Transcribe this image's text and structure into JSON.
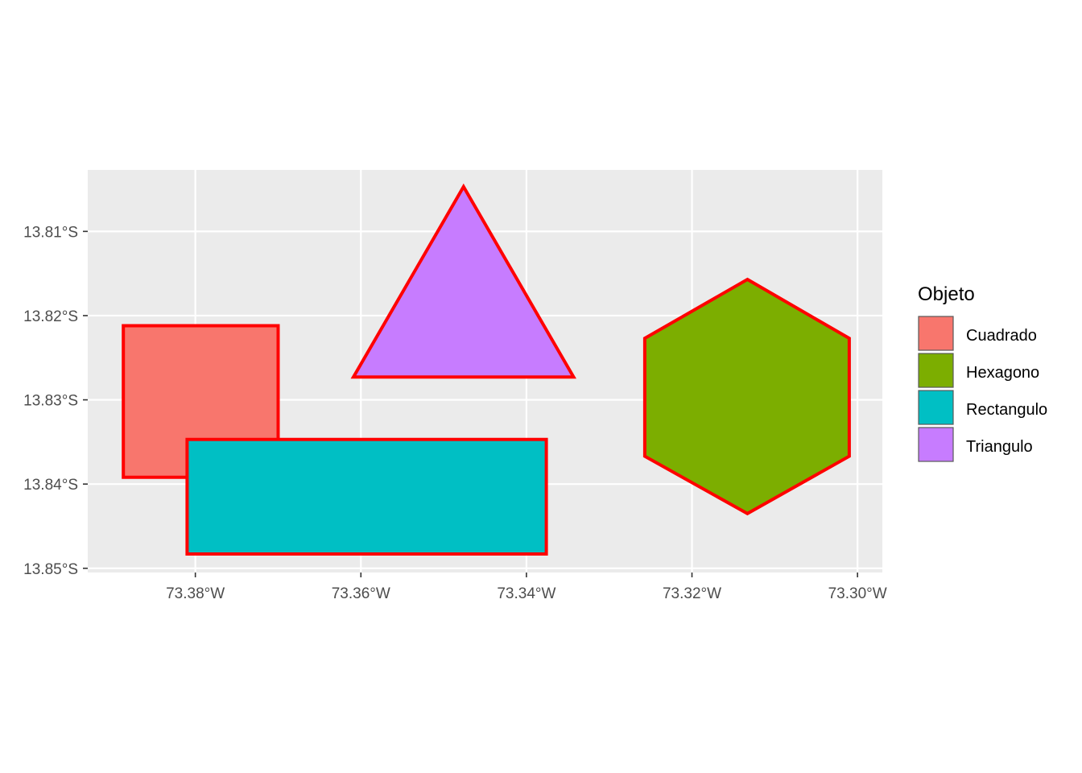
{
  "chart_data": {
    "type": "map",
    "title": "",
    "xlabel": "",
    "ylabel": "",
    "x_axis": {
      "ticks": [
        -73.38,
        -73.36,
        -73.34,
        -73.32,
        -73.3
      ],
      "tick_labels": [
        "73.38°W",
        "73.36°W",
        "73.34°W",
        "73.32°W",
        "73.30°W"
      ],
      "range": [
        -73.393,
        -73.297
      ]
    },
    "y_axis": {
      "ticks": [
        -13.81,
        -13.82,
        -13.83,
        -13.84,
        -13.85
      ],
      "tick_labels": [
        "13.81°S",
        "13.82°S",
        "13.83°S",
        "13.84°S",
        "13.85°S"
      ],
      "range": [
        -13.8505,
        -13.8027
      ]
    },
    "background": "#ebebeb",
    "grid": true,
    "outline_color": "#ff0000",
    "legend": {
      "title": "Objeto",
      "position": "right",
      "entries": [
        {
          "label": "Cuadrado",
          "color": "#f8766d"
        },
        {
          "label": "Hexagono",
          "color": "#7cae00"
        },
        {
          "label": "Rectangulo",
          "color": "#00bfc4"
        },
        {
          "label": "Triangulo",
          "color": "#c77cff"
        }
      ]
    },
    "features": [
      {
        "name": "Cuadrado",
        "color": "#f8766d",
        "coordinates": [
          [
            -73.3887,
            -13.8212
          ],
          [
            -73.37,
            -13.8212
          ],
          [
            -73.37,
            -13.8392
          ],
          [
            -73.3887,
            -13.8392
          ]
        ]
      },
      {
        "name": "Rectangulo",
        "color": "#00bfc4",
        "coordinates": [
          [
            -73.381,
            -13.8347
          ],
          [
            -73.3376,
            -13.8347
          ],
          [
            -73.3376,
            -13.8483
          ],
          [
            -73.381,
            -13.8483
          ]
        ]
      },
      {
        "name": "Triangulo",
        "color": "#c77cff",
        "coordinates": [
          [
            -73.3476,
            -13.8047
          ],
          [
            -73.3343,
            -13.8273
          ],
          [
            -73.3609,
            -13.8273
          ]
        ]
      },
      {
        "name": "Hexagono",
        "color": "#7cae00",
        "coordinates": [
          [
            -73.3133,
            -13.8157
          ],
          [
            -73.301,
            -13.8227
          ],
          [
            -73.301,
            -13.8367
          ],
          [
            -73.3133,
            -13.8435
          ],
          [
            -73.3257,
            -13.8367
          ],
          [
            -73.3257,
            -13.8227
          ]
        ]
      }
    ]
  }
}
